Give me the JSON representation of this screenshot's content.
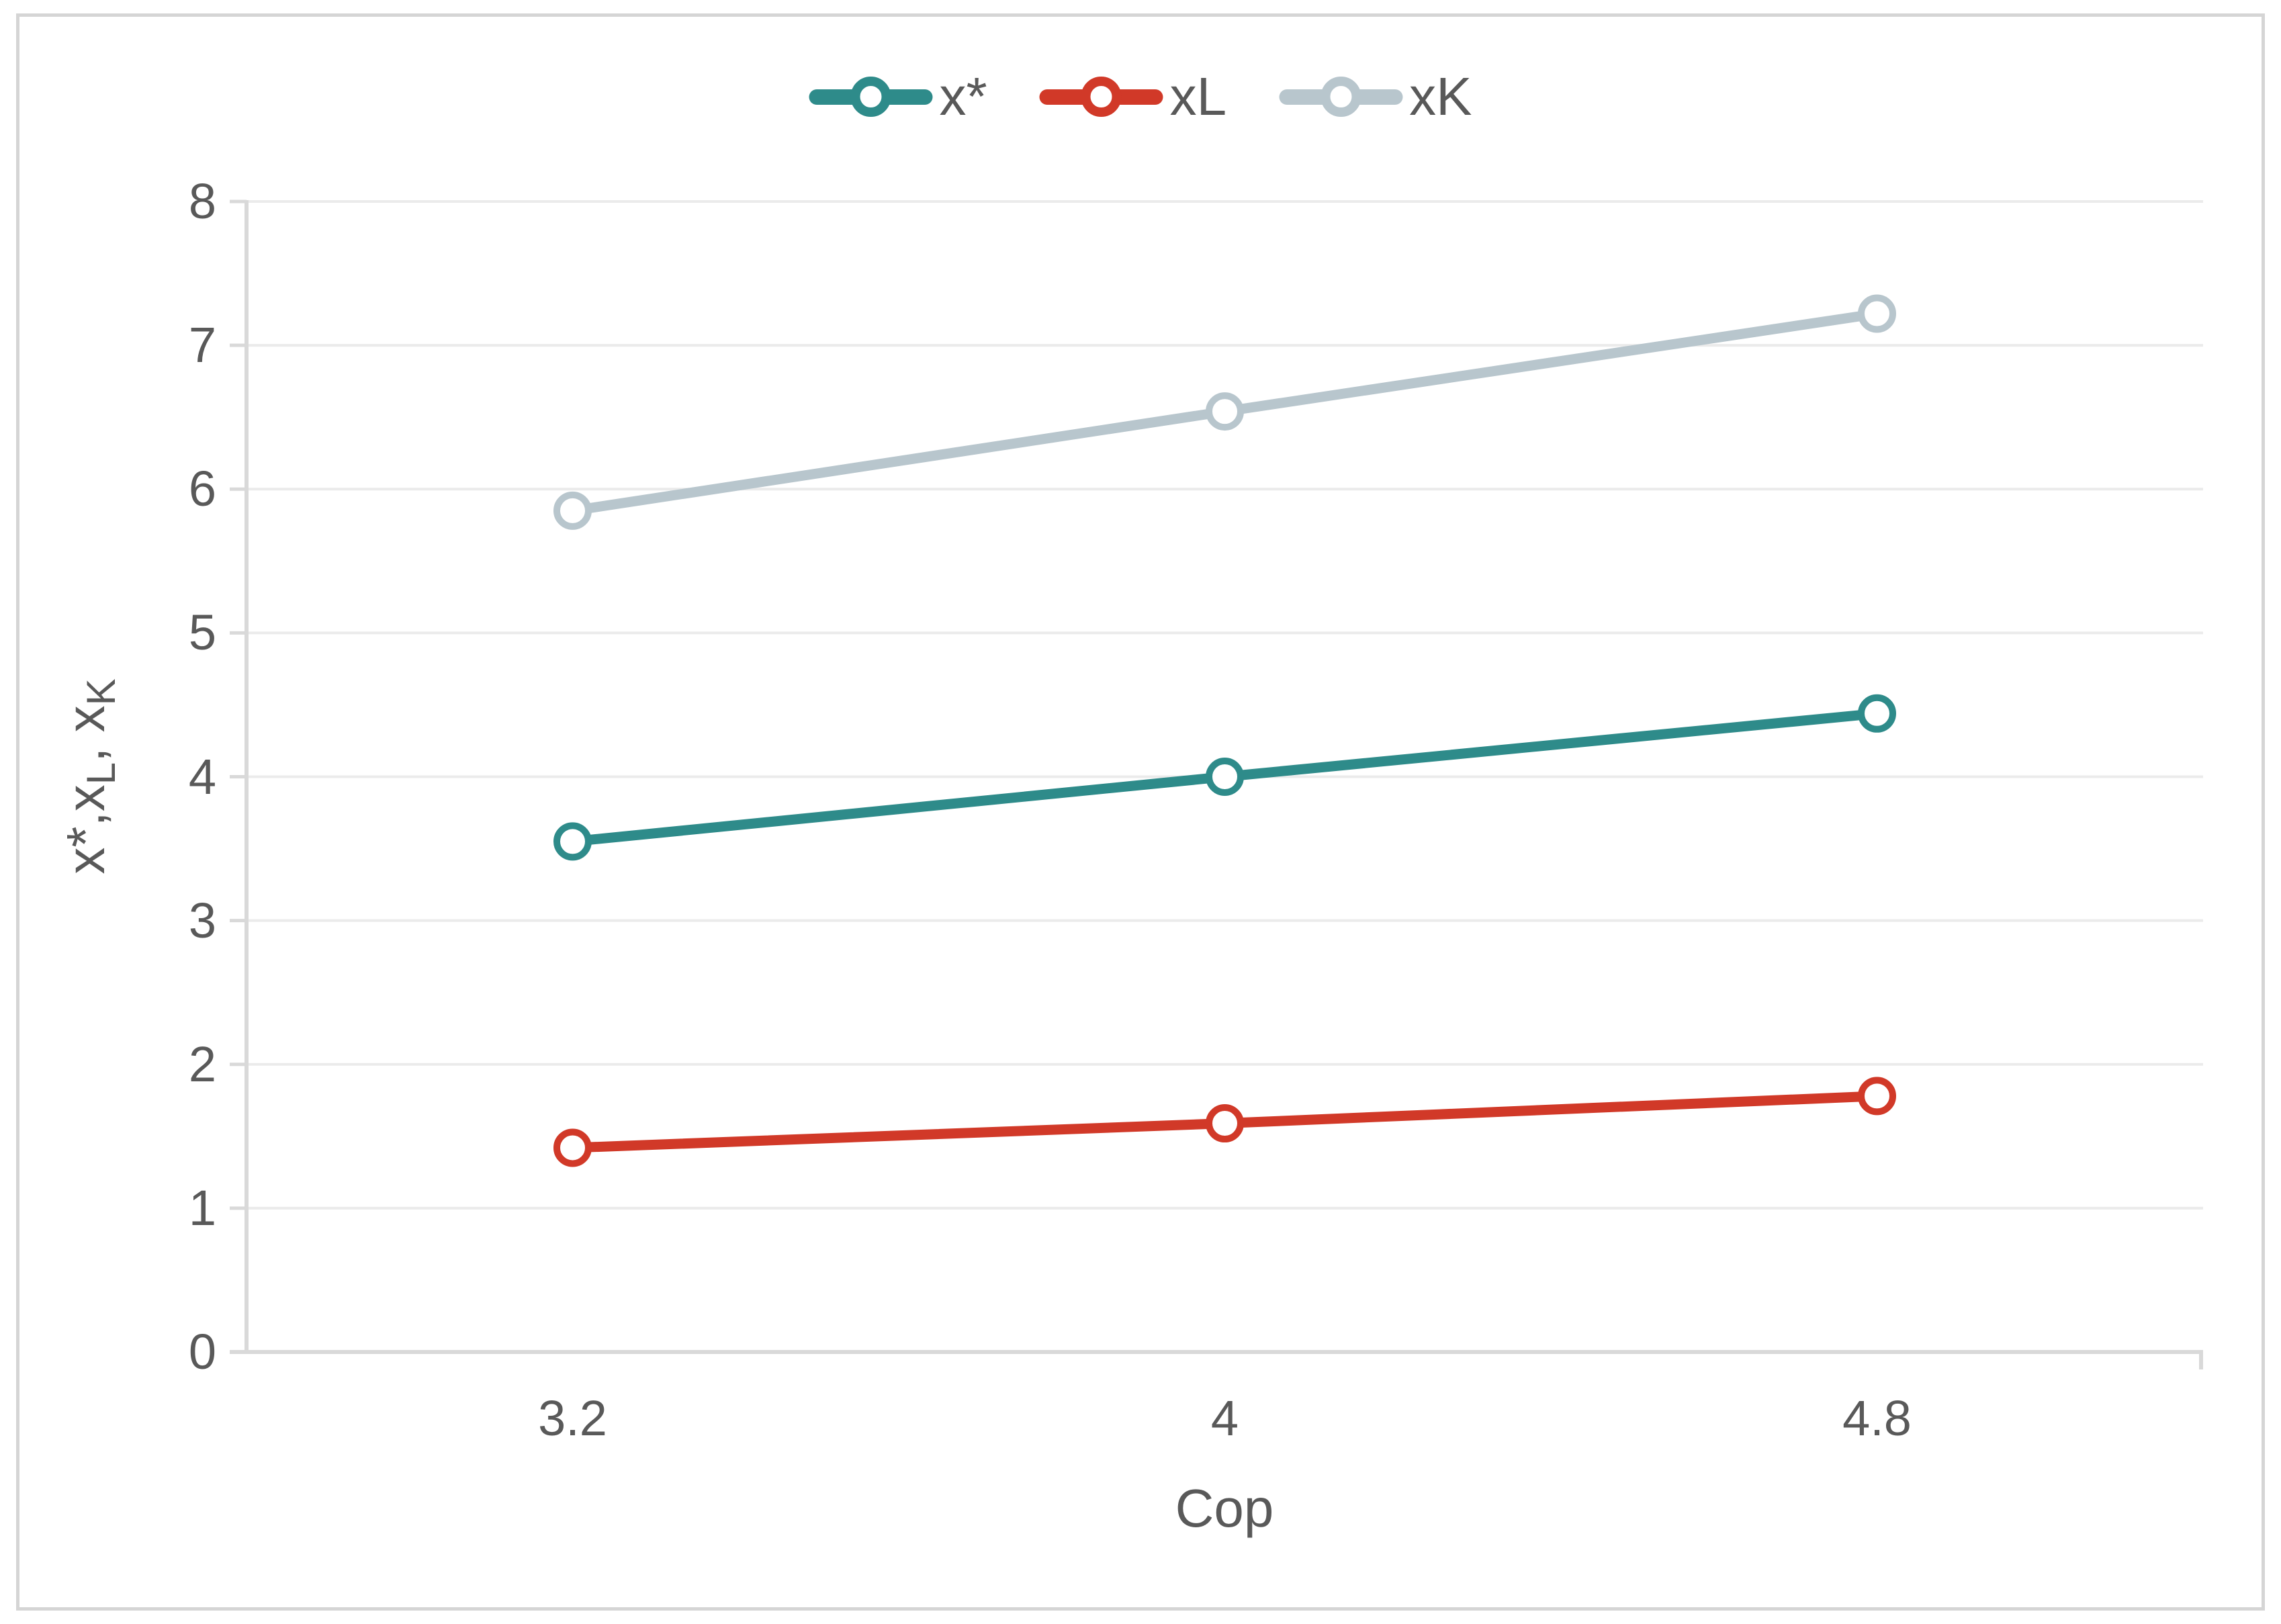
{
  "chart_data": {
    "type": "line",
    "x": [
      3.2,
      4,
      4.8
    ],
    "x_tick_labels": [
      "3.2",
      "4",
      "4.8"
    ],
    "y_ticks": [
      0,
      1,
      2,
      3,
      4,
      5,
      6,
      7,
      8
    ],
    "ylim": [
      0,
      8
    ],
    "grid": true,
    "legend_position": "top-center",
    "marker": "open-circle",
    "series": [
      {
        "name": "x*",
        "values": [
          3.55,
          4.0,
          4.44
        ],
        "color": "#2E8B8A"
      },
      {
        "name": "xL",
        "values": [
          1.42,
          1.59,
          1.78
        ],
        "color": "#D13928"
      },
      {
        "name": "xK",
        "values": [
          5.85,
          6.54,
          7.22
        ],
        "color": "#B8C6CD"
      }
    ],
    "xlabel": "Cop",
    "ylabel": "x*,xL, xK",
    "ylabel_parts": {
      "p1": "x",
      "p2": "*",
      "p3": ",x",
      "p4": "L",
      "p5": ", x",
      "p6": "K"
    }
  },
  "styles": {
    "text_color": "#595959",
    "grid_color": "#EBEBEB",
    "axis_color": "#D9D9D9",
    "frame_color": "#D5D5D5",
    "background": "#FFFFFF",
    "marker_fill": "#FFFFFF"
  }
}
